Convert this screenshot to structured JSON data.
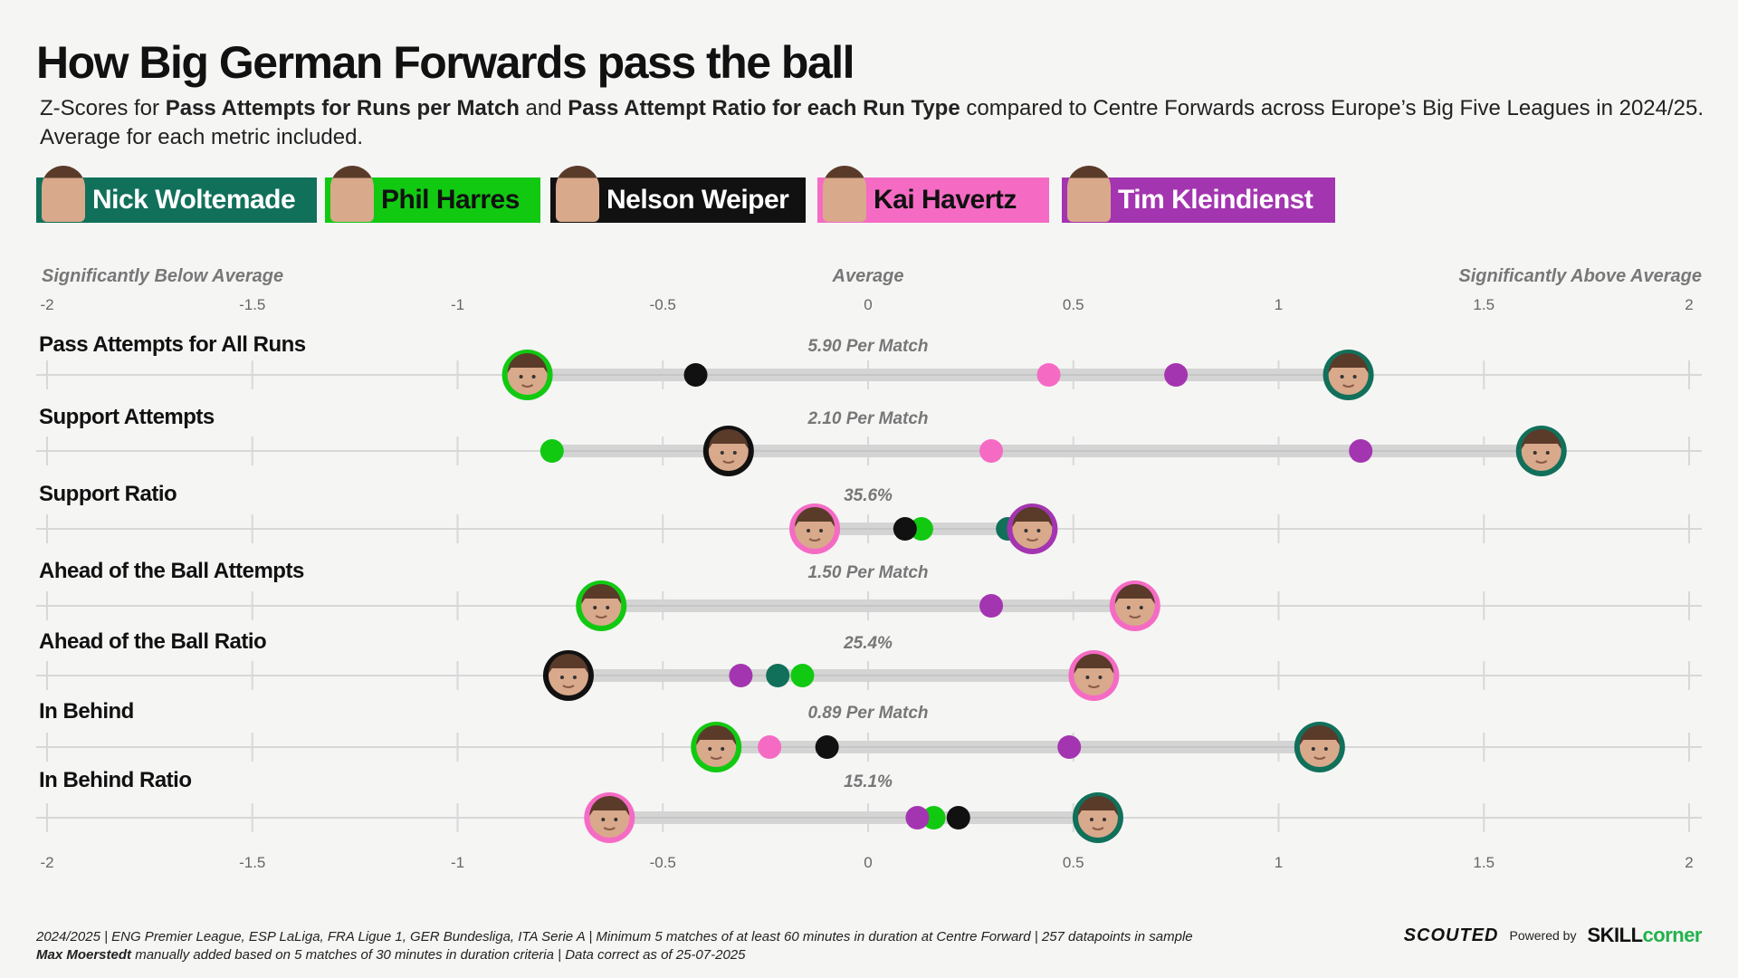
{
  "title": "How Big German Forwards pass the ball",
  "subtitle": {
    "p1": "Z-Scores for ",
    "b1": "Pass Attempts for Runs per Match",
    "p2": " and ",
    "b2": "Pass Attempt Ratio for each Run Type",
    "p3": " compared to Centre Forwards across Europe’s Big Five Leagues in 2024/25. Average for each metric included."
  },
  "legend": [
    {
      "name": "Nick Woltemade",
      "color": "#11705a",
      "text_color": "#ffffff"
    },
    {
      "name": "Phil Harres",
      "color": "#12c912",
      "text_color": "#111111"
    },
    {
      "name": "Nelson Weiper",
      "color": "#111111",
      "text_color": "#ffffff"
    },
    {
      "name": "Kai Havertz",
      "color": "#f56bc4",
      "text_color": "#111111"
    },
    {
      "name": "Tim Kleindienst",
      "color": "#a435b0",
      "text_color": "#ffffff"
    }
  ],
  "chart_data": {
    "type": "scatter",
    "xlim": [
      -2,
      2
    ],
    "ticks": [
      -2,
      -1.5,
      -1,
      -0.5,
      0,
      0.5,
      1,
      1.5,
      2
    ],
    "tick_labels": [
      "-2",
      "-1.5",
      "-1",
      "-0.5",
      "0",
      "0.5",
      "1",
      "1.5",
      "2"
    ],
    "axis_labels": {
      "left": "Significantly Below Average",
      "center": "Average",
      "right": "Significantly Above Average"
    },
    "player_order": [
      "Nick Woltemade",
      "Phil Harres",
      "Nelson Weiper",
      "Kai Havertz",
      "Tim Kleindienst"
    ],
    "metrics": [
      {
        "label": "Pass Attempts for All Runs",
        "avg_label": "5.90 Per Match",
        "values": {
          "Nick Woltemade": 1.17,
          "Phil Harres": -0.83,
          "Nelson Weiper": -0.42,
          "Kai Havertz": 0.44,
          "Tim Kleindienst": 0.75
        },
        "faces": [
          "Nick Woltemade",
          "Phil Harres"
        ]
      },
      {
        "label": "Support Attempts",
        "avg_label": "2.10 Per Match",
        "values": {
          "Nick Woltemade": 1.64,
          "Phil Harres": -0.77,
          "Nelson Weiper": -0.34,
          "Kai Havertz": 0.3,
          "Tim Kleindienst": 1.2
        },
        "faces": [
          "Nick Woltemade",
          "Nelson Weiper"
        ]
      },
      {
        "label": "Support Ratio",
        "avg_label": "35.6%",
        "values": {
          "Nick Woltemade": 0.34,
          "Phil Harres": 0.13,
          "Nelson Weiper": 0.09,
          "Kai Havertz": -0.13,
          "Tim Kleindienst": 0.4
        },
        "faces": [
          "Kai Havertz",
          "Tim Kleindienst"
        ]
      },
      {
        "label": "Ahead of the Ball Attempts",
        "avg_label": "1.50 Per Match",
        "values": {
          "Phil Harres": -0.65,
          "Kai Havertz": 0.65,
          "Tim Kleindienst": 0.3
        },
        "faces": [
          "Phil Harres",
          "Kai Havertz"
        ]
      },
      {
        "label": "Ahead of the Ball Ratio",
        "avg_label": "25.4%",
        "values": {
          "Nick Woltemade": -0.22,
          "Phil Harres": -0.16,
          "Nelson Weiper": -0.73,
          "Kai Havertz": 0.55,
          "Tim Kleindienst": -0.31
        },
        "faces": [
          "Nelson Weiper",
          "Kai Havertz"
        ]
      },
      {
        "label": "In Behind",
        "avg_label": "0.89 Per Match",
        "values": {
          "Nick Woltemade": 1.1,
          "Phil Harres": -0.37,
          "Nelson Weiper": -0.1,
          "Kai Havertz": -0.24,
          "Tim Kleindienst": 0.49
        },
        "faces": [
          "Nick Woltemade",
          "Phil Harres"
        ]
      },
      {
        "label": "In Behind Ratio",
        "avg_label": "15.1%",
        "values": {
          "Nick Woltemade": 0.56,
          "Phil Harres": 0.16,
          "Nelson Weiper": 0.22,
          "Kai Havertz": -0.63,
          "Tim Kleindienst": 0.12
        },
        "faces": [
          "Nick Woltemade",
          "Kai Havertz"
        ]
      }
    ]
  },
  "footer": {
    "line1": "2024/2025 | ENG Premier League, ESP LaLiga, FRA Ligue 1, GER Bundesliga, ITA Serie A | Minimum 5 matches of at least 60 minutes in duration at Centre Forward | 257 datapoints in sample",
    "line2_bold": "Max Moerstedt",
    "line2": " manually added based on 5 matches of 30 minutes in duration criteria | Data correct as of 25-07-2025"
  },
  "brand": {
    "scouted": "SCOUTED",
    "powered": "Powered by",
    "skill": "SKILL",
    "corner": "corner"
  }
}
